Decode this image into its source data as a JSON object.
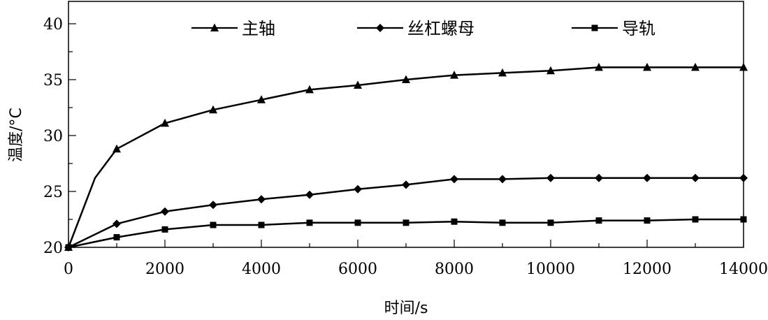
{
  "chart_data": {
    "type": "line",
    "xlabel": "时间/s",
    "ylabel": "温度/°C",
    "xlim": [
      0,
      14000
    ],
    "ylim": [
      20,
      42
    ],
    "xticks": [
      0,
      2000,
      4000,
      6000,
      8000,
      10000,
      12000,
      14000
    ],
    "yticks": [
      20,
      25,
      30,
      35,
      40
    ],
    "grid": false,
    "legend_position": "top",
    "series": [
      {
        "name": "主轴",
        "marker": "triangle",
        "x": [
          0,
          550,
          1000,
          2000,
          3000,
          4000,
          5000,
          6000,
          7000,
          8000,
          9000,
          10000,
          11000,
          12000,
          13000,
          14000
        ],
        "values": [
          20,
          26.2,
          28.8,
          31.1,
          32.3,
          33.2,
          34.1,
          34.5,
          35.0,
          35.4,
          35.6,
          35.8,
          36.1,
          36.1,
          36.1,
          36.1
        ]
      },
      {
        "name": "丝杠螺母",
        "marker": "diamond",
        "x": [
          0,
          1000,
          2000,
          3000,
          4000,
          5000,
          6000,
          7000,
          8000,
          9000,
          10000,
          11000,
          12000,
          13000,
          14000
        ],
        "values": [
          20,
          22.1,
          23.2,
          23.8,
          24.3,
          24.7,
          25.2,
          25.6,
          26.1,
          26.1,
          26.2,
          26.2,
          26.2,
          26.2,
          26.2
        ]
      },
      {
        "name": "导轨",
        "marker": "square",
        "x": [
          0,
          1000,
          2000,
          3000,
          4000,
          5000,
          6000,
          7000,
          8000,
          9000,
          10000,
          11000,
          12000,
          13000,
          14000
        ],
        "values": [
          20,
          20.9,
          21.6,
          22.0,
          22.0,
          22.2,
          22.2,
          22.2,
          22.3,
          22.2,
          22.2,
          22.4,
          22.4,
          22.5,
          22.5
        ]
      }
    ]
  }
}
